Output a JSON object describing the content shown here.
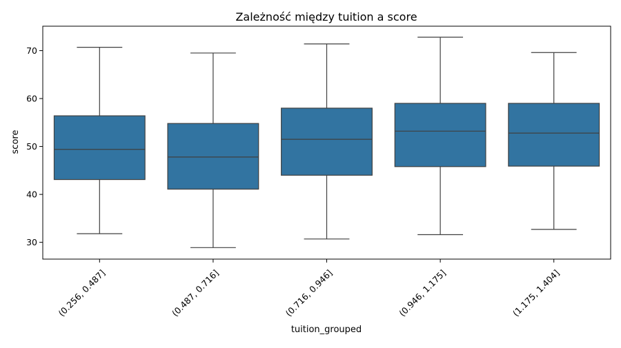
{
  "chart_data": {
    "type": "box",
    "title": "Zależność między tuition a score",
    "xlabel": "tuition_grouped",
    "ylabel": "score",
    "ylim": [
      26.5,
      75.1
    ],
    "yticks": [
      30,
      40,
      50,
      60,
      70
    ],
    "grid": false,
    "box_color": "#3274a1",
    "line_color": "#3f3f3f",
    "categories": [
      "(0.256, 0.487]",
      "(0.487, 0.716]",
      "(0.716, 0.946]",
      "(0.946, 1.175]",
      "(1.175, 1.404]"
    ],
    "boxes": [
      {
        "whisker_low": 31.8,
        "q1": 43.1,
        "median": 49.4,
        "q3": 56.4,
        "whisker_high": 70.7
      },
      {
        "whisker_low": 28.9,
        "q1": 41.1,
        "median": 47.8,
        "q3": 54.8,
        "whisker_high": 69.5
      },
      {
        "whisker_low": 30.7,
        "q1": 44.0,
        "median": 51.5,
        "q3": 58.0,
        "whisker_high": 71.4
      },
      {
        "whisker_low": 31.6,
        "q1": 45.8,
        "median": 53.2,
        "q3": 59.0,
        "whisker_high": 72.8
      },
      {
        "whisker_low": 32.7,
        "q1": 45.9,
        "median": 52.8,
        "q3": 59.0,
        "whisker_high": 69.6
      }
    ]
  }
}
